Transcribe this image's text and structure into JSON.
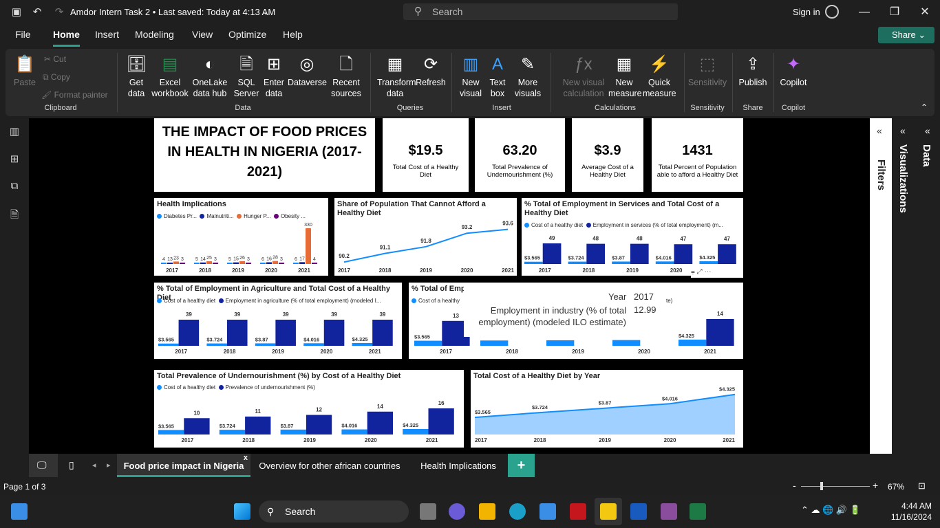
{
  "window": {
    "title": "Amdor Intern Task 2 • Last saved: Today at 4:13 AM",
    "search_placeholder": "Search",
    "signin": "Sign in"
  },
  "menu": {
    "items": [
      "File",
      "Home",
      "Insert",
      "Modeling",
      "View",
      "Optimize",
      "Help"
    ],
    "share": "Share"
  },
  "ribbon": {
    "clipboard": {
      "paste": "Paste",
      "cut": "Cut",
      "copy": "Copy",
      "format_painter": "Format painter",
      "group": "Clipboard"
    },
    "data": {
      "get_data": "Get data",
      "excel": "Excel workbook",
      "onelake": "OneLake data hub",
      "sql": "SQL Server",
      "enter": "Enter data",
      "dataverse": "Dataverse",
      "recent": "Recent sources",
      "group": "Data"
    },
    "queries": {
      "transform": "Transform data",
      "refresh": "Refresh",
      "group": "Queries"
    },
    "insert": {
      "new_visual": "New visual",
      "text_box": "Text box",
      "more_visuals": "More visuals",
      "group": "Insert"
    },
    "calculations": {
      "new_visual_calc": "New visual calculation",
      "new_measure": "New measure",
      "quick_measure": "Quick measure",
      "group": "Calculations"
    },
    "sensitivity": {
      "label": "Sensitivity",
      "group": "Sensitivity"
    },
    "share": {
      "publish": "Publish",
      "group": "Share"
    },
    "copilot": {
      "label": "Copilot",
      "group": "Copilot"
    }
  },
  "report": {
    "title": "THE IMPACT OF FOOD PRICES IN HEALTH IN NIGERIA (2017-2021)",
    "kpis": [
      {
        "value": "$19.5",
        "label": "Total Cost of a Healthy Diet"
      },
      {
        "value": "63.20",
        "label": "Total Prevalence of Undernourishment (%)"
      },
      {
        "value": "$3.9",
        "label": "Average Cost of a Healthy Diet"
      },
      {
        "value": "1431",
        "label": "Total Percent of Population able to afford a Healthy Diet"
      }
    ],
    "health": {
      "title": "Health Implications",
      "legend": [
        "Diabetes Pr...",
        "Malnutriti...",
        "Hunger P...",
        "Obesity ..."
      ],
      "colors": [
        "#118dff",
        "#12239e",
        "#e66c37",
        "#6b007b"
      ]
    },
    "share_cannot": {
      "title": "Share of Population That Cannot Afford a Healthy Diet"
    },
    "services": {
      "title": "% Total of Employment in Services and Total Cost of a Healthy Diet",
      "legend": [
        "Cost of a healthy diet",
        "Employment in services (% of total employment) (m..."
      ]
    },
    "agriculture": {
      "title": "% Total of Employment in Agriculture and Total Cost of a Healthy Diet",
      "legend": [
        "Cost of a healthy diet",
        "Employment in agriculture (% of total employment) (modeled I..."
      ]
    },
    "industry": {
      "title": "% Total of Empl",
      "legend": [
        "Cost of a healthy"
      ],
      "legend_tail": "te)"
    },
    "undernourishment": {
      "title": "Total Prevalence of Undernourishment (%) by Cost of a Healthy Diet",
      "legend": [
        "Cost of a healthy diet",
        "Prevalence of undernourishment (%)"
      ]
    },
    "cost_by_year": {
      "title": "Total Cost of a Healthy Diet by Year"
    },
    "tooltip": {
      "year_label": "Year",
      "year_value": "2017",
      "metric_label": "Employment in industry (% of total employment) (modeled ILO estimate)",
      "metric_value": "12.99"
    }
  },
  "chart_data": [
    {
      "type": "bar",
      "title": "Health Implications",
      "categories": [
        "2017",
        "2018",
        "2019",
        "2020",
        "2021"
      ],
      "series": [
        {
          "name": "Diabetes Pr...",
          "values": [
            4,
            5,
            5,
            6,
            6
          ]
        },
        {
          "name": "Malnutriti...",
          "values": [
            13,
            14,
            15,
            16,
            17
          ]
        },
        {
          "name": "Hunger P...",
          "values": [
            23,
            25,
            26,
            28,
            330
          ]
        },
        {
          "name": "Obesity ...",
          "values": [
            3,
            3,
            3,
            3,
            4
          ]
        }
      ]
    },
    {
      "type": "line",
      "title": "Share of Population That Cannot Afford a Healthy Diet",
      "categories": [
        "2017",
        "2018",
        "2019",
        "2020",
        "2021"
      ],
      "values": [
        90.2,
        91.1,
        91.8,
        93.2,
        93.6
      ]
    },
    {
      "type": "bar",
      "title": "% Total of Employment in Services and Total Cost of a Healthy Diet",
      "categories": [
        "2017",
        "2018",
        "2019",
        "2020",
        "2021"
      ],
      "series": [
        {
          "name": "Cost of a healthy diet",
          "labels": [
            "$3.565",
            "$3.724",
            "$3.87",
            "$4.016",
            "$4.325"
          ],
          "values": [
            3.565,
            3.724,
            3.87,
            4.016,
            4.325
          ]
        },
        {
          "name": "Employment in services (% of total employment) (m...",
          "values": [
            49,
            48,
            48,
            47,
            47
          ]
        }
      ]
    },
    {
      "type": "bar",
      "title": "% Total of Employment in Agriculture and Total Cost of a Healthy Diet",
      "categories": [
        "2017",
        "2018",
        "2019",
        "2020",
        "2021"
      ],
      "series": [
        {
          "name": "Cost of a healthy diet",
          "labels": [
            "$3.565",
            "$3.724",
            "$3.87",
            "$4.016",
            "$4.325"
          ],
          "values": [
            3.565,
            3.724,
            3.87,
            4.016,
            4.325
          ]
        },
        {
          "name": "Employment in agriculture (% of total employment) (modeled I...",
          "values": [
            39,
            39,
            39,
            39,
            39
          ]
        }
      ]
    },
    {
      "type": "bar",
      "title": "% Total of Empl",
      "categories": [
        "2017",
        "2018",
        "2019",
        "2020",
        "2021"
      ],
      "series": [
        {
          "name": "Cost of a healthy",
          "labels": [
            "$3.565",
            "",
            "",
            "",
            "$4.325"
          ],
          "values": [
            3.565,
            3.724,
            3.87,
            4.016,
            4.325
          ]
        },
        {
          "values": [
            13,
            null,
            null,
            null,
            14
          ]
        }
      ]
    },
    {
      "type": "bar",
      "title": "Total Prevalence of Undernourishment (%) by Cost of a Healthy Diet",
      "categories": [
        "2017",
        "2018",
        "2019",
        "2020",
        "2021"
      ],
      "series": [
        {
          "name": "Cost of a healthy diet",
          "labels": [
            "$3.565",
            "$3.724",
            "$3.87",
            "$4.016",
            "$4.325"
          ],
          "values": [
            3.565,
            3.724,
            3.87,
            4.016,
            4.325
          ]
        },
        {
          "name": "Prevalence of undernourishment (%)",
          "values": [
            10,
            11,
            12,
            14,
            16
          ]
        }
      ]
    },
    {
      "type": "area",
      "title": "Total Cost of a Healthy Diet by Year",
      "categories": [
        "2017",
        "2018",
        "2019",
        "2020",
        "2021"
      ],
      "labels": [
        "$3.565",
        "$3.724",
        "$3.87",
        "$4.016",
        "$4.325"
      ],
      "values": [
        3.565,
        3.724,
        3.87,
        4.016,
        4.325
      ]
    }
  ],
  "panes": {
    "filters": "Filters",
    "visualizations": "Visualizations",
    "data": "Data"
  },
  "tabs": [
    "Food price impact in Nigeria",
    "Overview for other african countries",
    "Health Implications"
  ],
  "status": {
    "page": "Page 1 of 3",
    "zoom": "67%"
  },
  "taskbar": {
    "search": "Search",
    "time": "4:44 AM",
    "date": "11/16/2024"
  }
}
